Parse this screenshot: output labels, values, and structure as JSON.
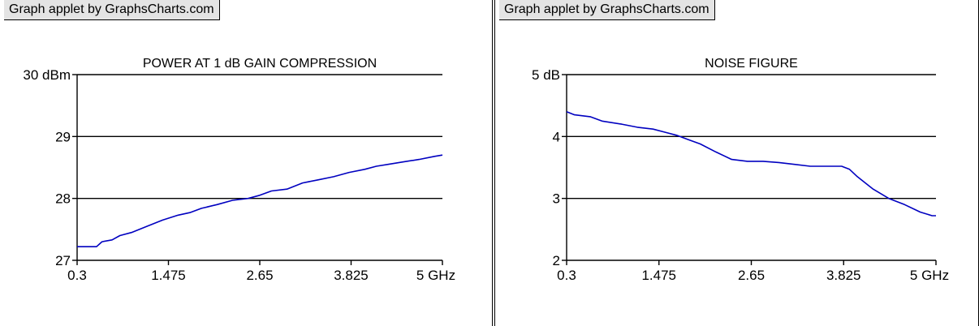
{
  "credit_label": "Graph applet by GraphsCharts.com",
  "colors": {
    "line": "#0000c0",
    "grid": "#000000",
    "credit_bg": "#e4e4e4"
  },
  "chart_data": [
    {
      "type": "line",
      "title": "POWER AT 1 dB GAIN COMPRESSION",
      "xlabel": "",
      "ylabel": "",
      "xlim": [
        0.3,
        5
      ],
      "ylim": [
        27,
        30
      ],
      "x_ticks": [
        "0.3",
        "1.475",
        "2.65",
        "3.825",
        "5 GHz"
      ],
      "y_ticks": [
        "27",
        "28",
        "29",
        "30 dBm"
      ],
      "grid": true,
      "series": [
        {
          "x": [
            0.3,
            0.55,
            0.62,
            0.75,
            0.85,
            1.0,
            1.2,
            1.4,
            1.6,
            1.75,
            1.9,
            2.1,
            2.3,
            2.5,
            2.65,
            2.8,
            3.0,
            3.2,
            3.4,
            3.6,
            3.8,
            4.0,
            4.15,
            4.3,
            4.5,
            4.7,
            4.9,
            5.0
          ],
          "y": [
            27.22,
            27.22,
            27.3,
            27.33,
            27.4,
            27.45,
            27.55,
            27.65,
            27.73,
            27.77,
            27.84,
            27.9,
            27.97,
            28.0,
            28.05,
            28.12,
            28.15,
            28.25,
            28.3,
            28.35,
            28.42,
            28.47,
            28.52,
            28.55,
            28.59,
            28.63,
            28.68,
            28.7
          ]
        }
      ]
    },
    {
      "type": "line",
      "title": "NOISE FIGURE",
      "xlabel": "",
      "ylabel": "",
      "xlim": [
        0.3,
        5
      ],
      "ylim": [
        2,
        5
      ],
      "x_ticks": [
        "0.3",
        "1.475",
        "2.65",
        "3.825",
        "5 GHz"
      ],
      "y_ticks": [
        "2",
        "3",
        "4",
        "5 dB"
      ],
      "grid": true,
      "series": [
        {
          "x": [
            0.3,
            0.4,
            0.6,
            0.75,
            1.0,
            1.2,
            1.4,
            1.55,
            1.7,
            1.85,
            2.0,
            2.2,
            2.4,
            2.6,
            2.8,
            3.0,
            3.2,
            3.4,
            3.6,
            3.8,
            3.9,
            4.0,
            4.2,
            4.4,
            4.6,
            4.8,
            4.95,
            5.0
          ],
          "y": [
            4.4,
            4.35,
            4.32,
            4.25,
            4.2,
            4.15,
            4.12,
            4.07,
            4.02,
            3.95,
            3.88,
            3.75,
            3.63,
            3.6,
            3.6,
            3.58,
            3.55,
            3.52,
            3.52,
            3.52,
            3.47,
            3.35,
            3.15,
            3.0,
            2.9,
            2.78,
            2.72,
            2.72
          ]
        }
      ]
    }
  ]
}
